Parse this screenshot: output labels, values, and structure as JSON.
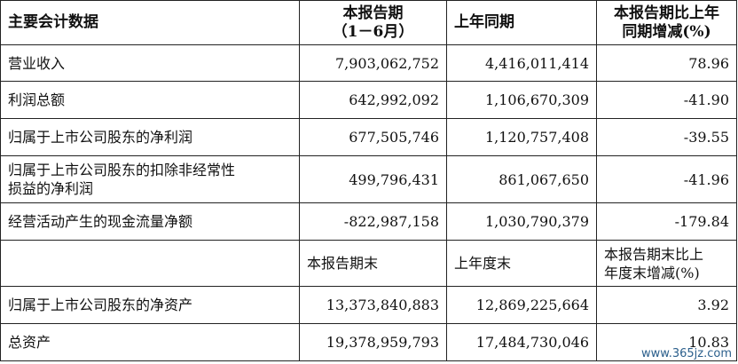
{
  "header": {
    "col1": "主要会计数据",
    "col2_line1": "本报告期",
    "col2_line2": "（1－6月）",
    "col3": "上年同期",
    "col4_line1": "本报告期比上年",
    "col4_line2": "同期增减(%)"
  },
  "rows": [
    {
      "label": "营业收入",
      "current": "7,903,062,752",
      "prior": "4,416,011,414",
      "change": "78.96"
    },
    {
      "label": "利润总额",
      "current": "642,992,092",
      "prior": "1,106,670,309",
      "change": "-41.90"
    },
    {
      "label": "归属于上市公司股东的净利润",
      "current": "677,505,746",
      "prior": "1,120,757,408",
      "change": "-39.55"
    },
    {
      "label_line1": "归属于上市公司股东的扣除非经常性",
      "label_line2": "损益的净利润",
      "current": "499,796,431",
      "prior": "861,067,650",
      "change": "-41.96"
    },
    {
      "label": "经营活动产生的现金流量净额",
      "current": "-822,987,158",
      "prior": "1,030,790,379",
      "change": "-179.84"
    }
  ],
  "subheader": {
    "col1": "",
    "col2": "本报告期末",
    "col3": "上年度末",
    "col4_line1": "本报告期末比上",
    "col4_line2": "年度末增减(%)"
  },
  "rows2": [
    {
      "label": "归属于上市公司股东的净资产",
      "current": "13,373,840,883",
      "prior": "12,869,225,664",
      "change": "3.92"
    },
    {
      "label": "总资产",
      "current": "19,378,959,793",
      "prior": "17,484,730,046",
      "change": "10.83"
    }
  ],
  "watermark": "www.365jz.com"
}
